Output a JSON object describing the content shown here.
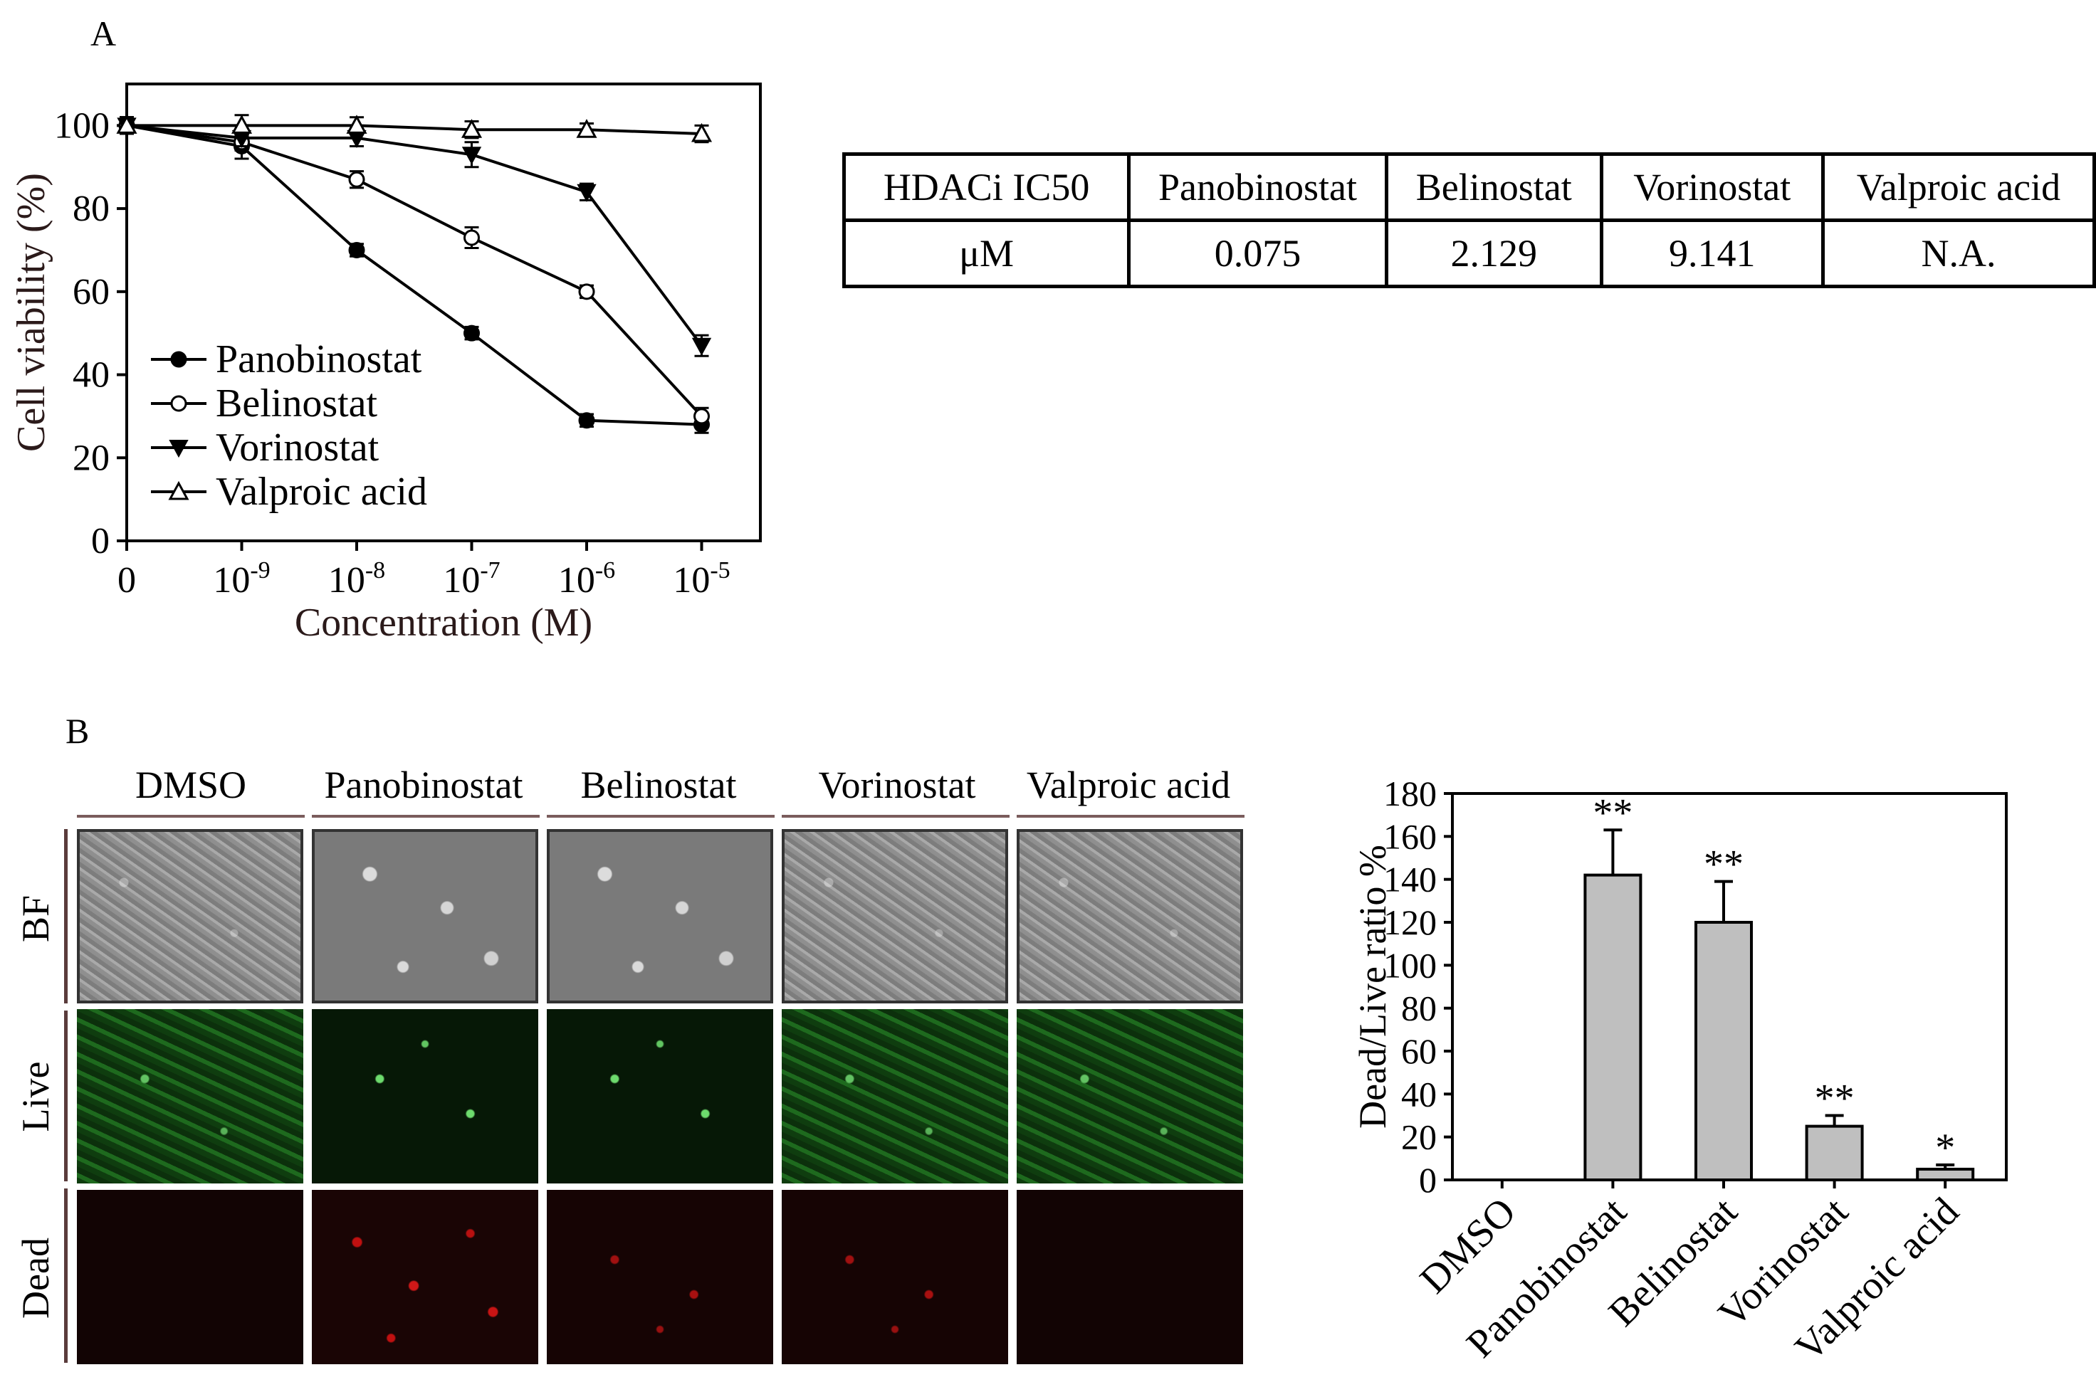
{
  "panel_a": {
    "letter": "A"
  },
  "panel_b": {
    "letter": "B"
  },
  "chart_data": [
    {
      "type": "line",
      "ylabel": "Cell viability (%)",
      "xlabel": "Concentration (M)",
      "categories": [
        "0",
        "10-9",
        "10-8",
        "10-7",
        "10-6",
        "10-5"
      ],
      "category_ticks": [
        {
          "base": "0",
          "exp": ""
        },
        {
          "base": "10",
          "exp": "-9"
        },
        {
          "base": "10",
          "exp": "-8"
        },
        {
          "base": "10",
          "exp": "-7"
        },
        {
          "base": "10",
          "exp": "-6"
        },
        {
          "base": "10",
          "exp": "-5"
        }
      ],
      "ylim": [
        0,
        110
      ],
      "yticks": [
        0,
        20,
        40,
        60,
        80,
        100
      ],
      "legend_position": "bottom-left",
      "series": [
        {
          "name": "Panobinostat",
          "marker": "circle-filled",
          "values": [
            100,
            95,
            70,
            50,
            29,
            28
          ],
          "errors": [
            2,
            3,
            1.5,
            1.5,
            1.5,
            2
          ]
        },
        {
          "name": "Belinostat",
          "marker": "circle-open",
          "values": [
            100,
            96,
            87,
            73,
            60,
            30
          ],
          "errors": [
            2,
            2,
            2,
            2.5,
            1.5,
            2
          ]
        },
        {
          "name": "Vorinostat",
          "marker": "triangle-down-filled",
          "values": [
            100,
            97,
            97,
            93,
            84,
            47
          ],
          "errors": [
            2,
            2,
            2,
            3,
            2,
            2.5
          ]
        },
        {
          "name": "Valproic acid",
          "marker": "triangle-up-open",
          "values": [
            100,
            100,
            100,
            99,
            99,
            98
          ],
          "errors": [
            2,
            2.5,
            2,
            2,
            1.5,
            2
          ]
        }
      ]
    },
    {
      "type": "table",
      "header": [
        "HDACi IC50",
        "Panobinostat",
        "Belinostat",
        "Vorinostat",
        "Valproic acid"
      ],
      "rows": [
        [
          "μM",
          "0.075",
          "2.129",
          "9.141",
          "N.A."
        ]
      ]
    },
    {
      "type": "bar",
      "ylabel": "Dead/Live ratio %",
      "categories": [
        "DMSO",
        "Panobinostat",
        "Belinostat",
        "Vorinostat",
        "Valproic acid"
      ],
      "values": [
        0,
        142,
        120,
        25,
        5
      ],
      "errors": [
        0,
        21,
        19,
        5,
        2
      ],
      "significance": [
        "",
        "**",
        "**",
        "**",
        "*"
      ],
      "ylim": [
        0,
        180
      ],
      "yticks": [
        0,
        20,
        40,
        60,
        80,
        100,
        120,
        140,
        160,
        180
      ],
      "bar_color": "#bfbfbf"
    }
  ],
  "micrographs": {
    "columns": [
      "DMSO",
      "Panobinostat",
      "Belinostat",
      "Vorinostat",
      "Valproic acid"
    ],
    "rows": [
      "BF",
      "Live",
      "Dead"
    ]
  }
}
